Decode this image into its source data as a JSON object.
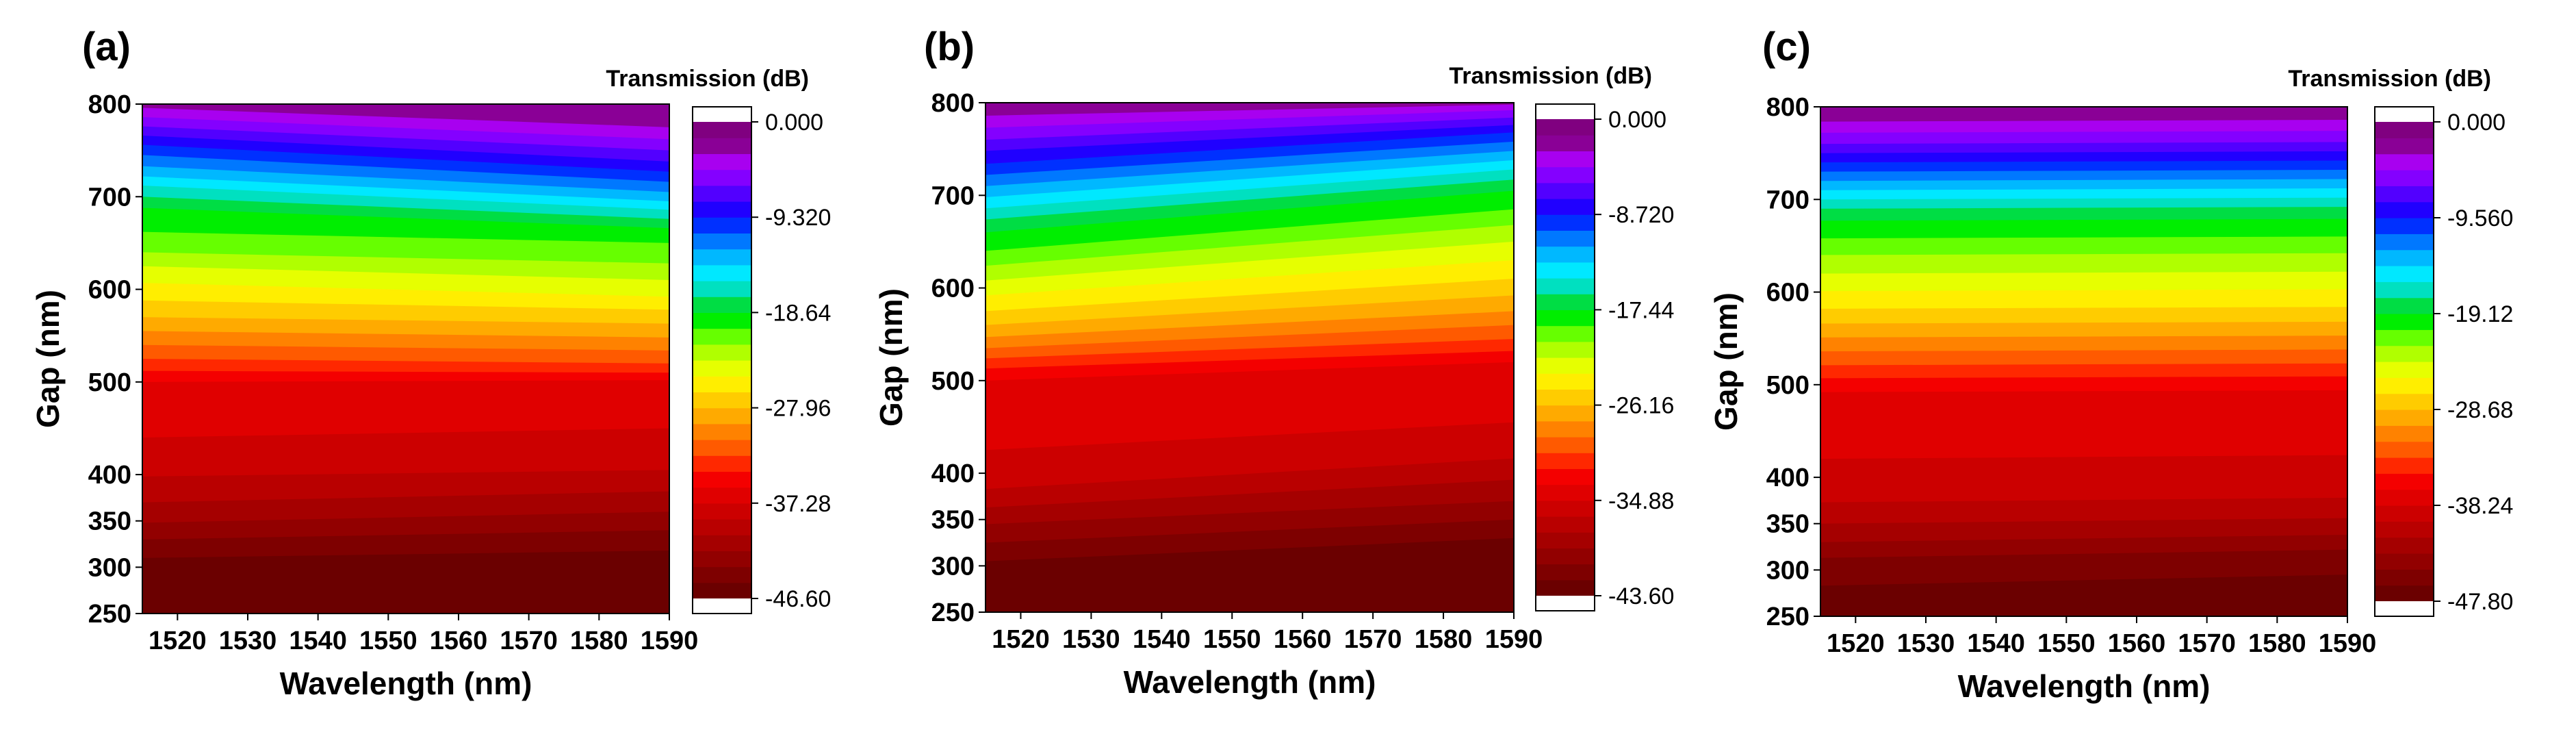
{
  "figure": {
    "panels": [
      {
        "label": "(a)",
        "colorbar_title": "Transmission (dB)",
        "colorbar_ticks": [
          "0.000",
          "-9.320",
          "-18.64",
          "-27.96",
          "-37.28",
          "-46.60"
        ]
      },
      {
        "label": "(b)",
        "colorbar_title": "Transmission (dB)",
        "colorbar_ticks": [
          "0.000",
          "-8.720",
          "-17.44",
          "-26.16",
          "-34.88",
          "-43.60"
        ]
      },
      {
        "label": "(c)",
        "colorbar_title": "Transmission (dB)",
        "colorbar_ticks": [
          "0.000",
          "-9.560",
          "-19.12",
          "-28.68",
          "-38.24",
          "-47.80"
        ]
      }
    ]
  },
  "colors": {
    "palette": [
      "#6b0000",
      "#7e0000",
      "#920000",
      "#a50000",
      "#b90000",
      "#cc0000",
      "#e00000",
      "#f40000",
      "#ff2800",
      "#ff5a00",
      "#ff8200",
      "#ffaa00",
      "#ffcc00",
      "#ffee00",
      "#e6ff00",
      "#b0ff00",
      "#66ff00",
      "#00ee00",
      "#00dd44",
      "#00e0c0",
      "#00e8ff",
      "#00b8ff",
      "#0078ff",
      "#0030ff",
      "#2000ff",
      "#5200ff",
      "#8400ff",
      "#a800f0",
      "#8a0096",
      "#800080"
    ]
  },
  "chart_data": [
    {
      "type": "heatmap",
      "title": "(a)",
      "xlabel": "Wavelength (nm)",
      "ylabel": "Gap (nm)",
      "xlim": [
        1515,
        1590
      ],
      "ylim": [
        250,
        800
      ],
      "xticks": [
        1520,
        1530,
        1540,
        1550,
        1560,
        1570,
        1580,
        1590
      ],
      "yticks": [
        250,
        300,
        350,
        400,
        500,
        600,
        700,
        800
      ],
      "colorbar": {
        "label": "Transmission (dB)",
        "min": -46.6,
        "max": 0.0,
        "ticks": [
          0.0,
          -9.32,
          -18.64,
          -27.96,
          -37.28,
          -46.6
        ]
      },
      "contour_gap_at_1515": [
        310,
        330,
        348,
        370,
        398,
        440,
        500,
        512,
        525,
        540,
        555,
        570,
        588,
        607,
        625,
        640,
        662,
        688,
        700,
        712,
        722,
        733,
        745,
        756,
        766,
        776,
        786,
        796
      ],
      "contour_gap_at_1590": [
        318,
        340,
        360,
        382,
        405,
        450,
        502,
        510,
        520,
        534,
        548,
        563,
        578,
        592,
        610,
        628,
        650,
        666,
        676,
        686,
        695,
        705,
        716,
        727,
        738,
        750,
        762,
        775
      ]
    },
    {
      "type": "heatmap",
      "title": "(b)",
      "xlabel": "Wavelength (nm)",
      "ylabel": "Gap (nm)",
      "xlim": [
        1515,
        1590
      ],
      "ylim": [
        250,
        800
      ],
      "xticks": [
        1520,
        1530,
        1540,
        1550,
        1560,
        1570,
        1580,
        1590
      ],
      "yticks": [
        250,
        300,
        350,
        400,
        500,
        600,
        700,
        800
      ],
      "colorbar": {
        "label": "Transmission (dB)",
        "min": -43.6,
        "max": 0.0,
        "ticks": [
          0.0,
          -8.72,
          -17.44,
          -26.16,
          -34.88,
          -43.6
        ]
      },
      "contour_gap_at_1515": [
        305,
        325,
        345,
        363,
        383,
        425,
        500,
        513,
        524,
        535,
        547,
        560,
        575,
        592,
        608,
        624,
        640,
        660,
        674,
        686,
        698,
        710,
        722,
        734,
        748,
        760,
        773,
        786
      ],
      "contour_gap_at_1590": [
        330,
        350,
        370,
        393,
        416,
        455,
        520,
        532,
        545,
        560,
        575,
        592,
        610,
        630,
        650,
        668,
        685,
        705,
        717,
        728,
        738,
        748,
        758,
        768,
        776,
        784,
        792,
        798
      ]
    },
    {
      "type": "heatmap",
      "title": "(c)",
      "xlabel": "Wavelength (nm)",
      "ylabel": "Gap (nm)",
      "xlim": [
        1515,
        1590
      ],
      "ylim": [
        250,
        800
      ],
      "xticks": [
        1520,
        1530,
        1540,
        1550,
        1560,
        1570,
        1580,
        1590
      ],
      "yticks": [
        250,
        300,
        350,
        400,
        500,
        600,
        700,
        800
      ],
      "colorbar": {
        "label": "Transmission (dB)",
        "min": -47.8,
        "max": 0.0,
        "ticks": [
          0.0,
          -9.56,
          -19.12,
          -28.68,
          -38.24,
          -47.8
        ]
      },
      "contour_gap_at_1515": [
        283,
        313,
        330,
        350,
        373,
        420,
        492,
        507,
        521,
        536,
        551,
        566,
        582,
        601,
        620,
        640,
        658,
        677,
        690,
        700,
        710,
        720,
        730,
        740,
        750,
        760,
        772,
        784
      ],
      "contour_gap_at_1590": [
        295,
        322,
        338,
        356,
        378,
        424,
        494,
        509,
        523,
        538,
        553,
        568,
        584,
        603,
        622,
        642,
        660,
        679,
        692,
        702,
        712,
        722,
        732,
        742,
        752,
        762,
        774,
        786
      ]
    }
  ]
}
